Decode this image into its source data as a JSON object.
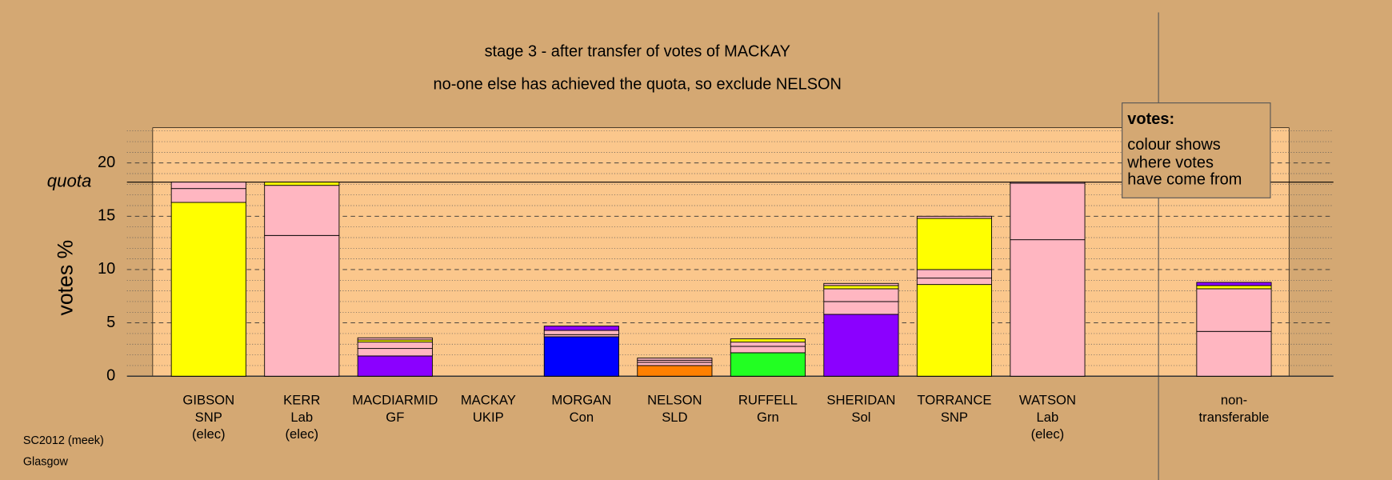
{
  "chart_data": {
    "type": "stacked-bar",
    "title": "stage 3 - after transfer of votes of MACKAY",
    "subtitle": "no-one else has achieved the quota, so exclude NELSON",
    "y_label": "votes %",
    "ylim": [
      0,
      23.3
    ],
    "yticks": [
      0,
      5,
      10,
      15,
      20
    ],
    "minor_yticks": [
      1,
      2,
      3,
      4,
      6,
      7,
      8,
      9,
      11,
      12,
      13,
      14,
      16,
      17,
      18,
      19,
      21,
      22,
      23
    ],
    "quota": {
      "value": 18.2,
      "label": "quota"
    },
    "legend": {
      "title": "votes:",
      "lines": [
        "colour shows",
        "where votes",
        "have come from"
      ]
    },
    "footer": [
      "SC2012 (meek)",
      "Glasgow"
    ],
    "bars": [
      {
        "label": [
          "GIBSON",
          "SNP",
          "(elec)"
        ],
        "segments": [
          {
            "value": 16.3,
            "color": "#ffff00"
          },
          {
            "value": 1.3,
            "color": "#ffb6c1"
          },
          {
            "value": 0.6,
            "color": "#ffb6c1"
          }
        ]
      },
      {
        "label": [
          "KERR",
          "Lab",
          "(elec)"
        ],
        "segments": [
          {
            "value": 13.2,
            "color": "#ffb6c1"
          },
          {
            "value": 4.7,
            "color": "#ffb6c1"
          },
          {
            "value": 0.3,
            "color": "#ffff00"
          }
        ]
      },
      {
        "label": [
          "MACDIARMID",
          "GF"
        ],
        "segments": [
          {
            "value": 1.9,
            "color": "#8b00ff"
          },
          {
            "value": 0.7,
            "color": "#ffb6c1"
          },
          {
            "value": 0.6,
            "color": "#ffb6c1"
          },
          {
            "value": 0.2,
            "color": "#ffff00"
          },
          {
            "value": 0.2,
            "color": "#ffb6c1"
          }
        ]
      },
      {
        "label": [
          "MACKAY",
          "UKIP"
        ],
        "segments": [
          {
            "value": 0,
            "color": "#ffb6c1"
          }
        ]
      },
      {
        "label": [
          "MORGAN",
          "Con"
        ],
        "segments": [
          {
            "value": 3.7,
            "color": "#0000ff"
          },
          {
            "value": 0.2,
            "color": "#ffb6c1"
          },
          {
            "value": 0.4,
            "color": "#ffb6c1"
          },
          {
            "value": 0.4,
            "color": "#8b00ff"
          }
        ]
      },
      {
        "label": [
          "NELSON",
          "SLD"
        ],
        "segments": [
          {
            "value": 1.0,
            "color": "#ff8000"
          },
          {
            "value": 0.3,
            "color": "#ffb6c1"
          },
          {
            "value": 0.2,
            "color": "#ffb6c1"
          },
          {
            "value": 0.2,
            "color": "#ffb6c1"
          }
        ]
      },
      {
        "label": [
          "RUFFELL",
          "Grn"
        ],
        "segments": [
          {
            "value": 2.2,
            "color": "#22ff22"
          },
          {
            "value": 0.6,
            "color": "#ffb6c1"
          },
          {
            "value": 0.4,
            "color": "#ffb6c1"
          },
          {
            "value": 0.3,
            "color": "#ffff00"
          }
        ]
      },
      {
        "label": [
          "SHERIDAN",
          "Sol"
        ],
        "segments": [
          {
            "value": 5.8,
            "color": "#8b00ff"
          },
          {
            "value": 1.2,
            "color": "#ffb6c1"
          },
          {
            "value": 1.2,
            "color": "#ffb6c1"
          },
          {
            "value": 0.3,
            "color": "#ffff00"
          },
          {
            "value": 0.2,
            "color": "#ffb6c1"
          }
        ]
      },
      {
        "label": [
          "TORRANCE",
          "SNP"
        ],
        "segments": [
          {
            "value": 8.6,
            "color": "#ffff00"
          },
          {
            "value": 0.6,
            "color": "#ffb6c1"
          },
          {
            "value": 0.8,
            "color": "#ffb6c1"
          },
          {
            "value": 4.8,
            "color": "#ffff00"
          },
          {
            "value": 0.2,
            "color": "#ffb6c1"
          }
        ]
      },
      {
        "label": [
          "WATSON",
          "Lab",
          "(elec)"
        ],
        "segments": [
          {
            "value": 12.8,
            "color": "#ffb6c1"
          },
          {
            "value": 5.3,
            "color": "#ffb6c1"
          },
          {
            "value": 0.1,
            "color": "#ffb6c1"
          }
        ]
      },
      {
        "label": [
          "non-",
          "transferable"
        ],
        "segments": [
          {
            "value": 4.2,
            "color": "#ffb6c1"
          },
          {
            "value": 4.0,
            "color": "#ffb6c1"
          },
          {
            "value": 0.3,
            "color": "#ffff00"
          },
          {
            "value": 0.3,
            "color": "#8b00ff"
          }
        ]
      }
    ]
  }
}
